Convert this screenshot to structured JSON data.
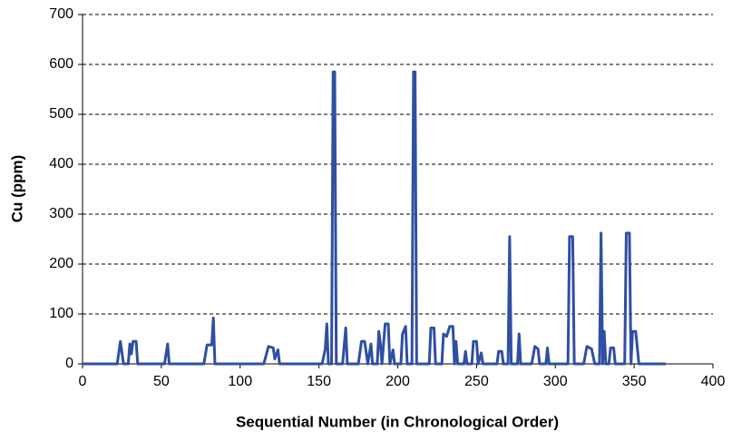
{
  "chart_data": {
    "type": "line",
    "x_label": "Sequential Number (in Chronological Order)",
    "y_label": "Cu (ppm)",
    "color": "#2f4fa2",
    "grid": true,
    "xlim": [
      0,
      400
    ],
    "xticks": [
      0,
      50,
      100,
      150,
      200,
      250,
      300,
      350,
      400
    ],
    "ylim": [
      0,
      700
    ],
    "yticks": [
      0,
      100,
      200,
      300,
      400,
      500,
      600,
      700
    ],
    "x": [
      0,
      10,
      22,
      24,
      26,
      29,
      30,
      31,
      32,
      34,
      35,
      52,
      54,
      55,
      77,
      79,
      82,
      83,
      84,
      115,
      118,
      121,
      122,
      124,
      125,
      152,
      154,
      155,
      156,
      158,
      159,
      160,
      161,
      165,
      167,
      168,
      175,
      177,
      179,
      181,
      183,
      184,
      187,
      188,
      189,
      190,
      192,
      194,
      195,
      197,
      198,
      202,
      203,
      205,
      206,
      209,
      210,
      211,
      212,
      220,
      221,
      223,
      224,
      228,
      229,
      231,
      233,
      235,
      236,
      237,
      238,
      242,
      243,
      244,
      247,
      248,
      250,
      251,
      253,
      254,
      263,
      264,
      266,
      267,
      270,
      271,
      272,
      276,
      277,
      278,
      285,
      287,
      289,
      290,
      294,
      295,
      296,
      308,
      309,
      311,
      312,
      318,
      320,
      323,
      325,
      328,
      329,
      330,
      331,
      332,
      334,
      335,
      337,
      338,
      344,
      345,
      347,
      348,
      349,
      351,
      353,
      360,
      370
    ],
    "values": [
      0,
      0,
      0,
      45,
      0,
      0,
      40,
      20,
      45,
      45,
      0,
      0,
      40,
      0,
      0,
      38,
      38,
      92,
      0,
      0,
      35,
      32,
      10,
      28,
      0,
      0,
      30,
      80,
      0,
      0,
      585,
      585,
      0,
      0,
      72,
      0,
      0,
      45,
      45,
      0,
      40,
      0,
      0,
      65,
      40,
      0,
      80,
      80,
      0,
      28,
      0,
      0,
      60,
      75,
      0,
      0,
      585,
      585,
      0,
      0,
      72,
      72,
      0,
      0,
      60,
      55,
      75,
      75,
      0,
      45,
      0,
      0,
      25,
      0,
      0,
      45,
      45,
      0,
      22,
      0,
      0,
      25,
      25,
      0,
      0,
      255,
      0,
      0,
      60,
      0,
      0,
      35,
      30,
      0,
      0,
      32,
      0,
      0,
      255,
      255,
      0,
      0,
      35,
      30,
      0,
      0,
      262,
      0,
      65,
      0,
      0,
      32,
      32,
      0,
      0,
      262,
      262,
      0,
      65,
      65,
      0,
      0,
      0
    ]
  }
}
